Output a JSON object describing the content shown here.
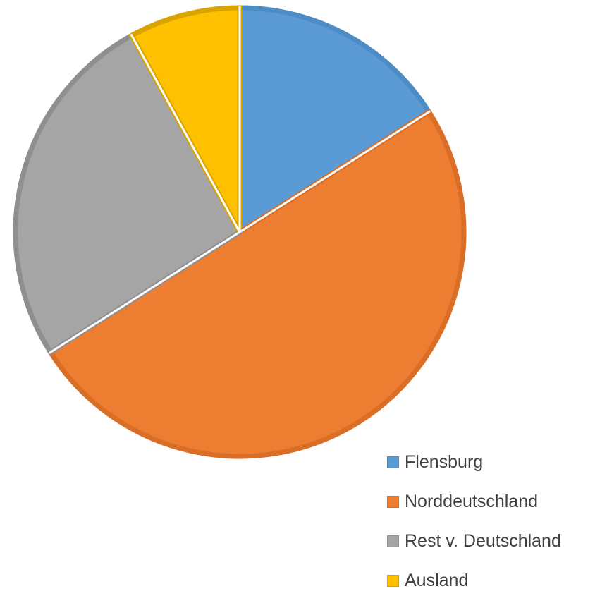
{
  "chart_data": {
    "type": "pie",
    "title": "",
    "categories": [
      "Flensburg",
      "Norddeutschland",
      "Rest v. Deutschland",
      "Ausland"
    ],
    "values": [
      16,
      50,
      26,
      8
    ],
    "unit": "%",
    "start_angle": "12 o'clock",
    "direction": "clockwise",
    "legend": "bottom-right",
    "colors": [
      "#5B9BD5",
      "#ED7D31",
      "#A5A5A5",
      "#FFC000"
    ],
    "border_colors": [
      "#4E8CC6",
      "#D96E27",
      "#8F8F8F",
      "#D9A300"
    ]
  }
}
